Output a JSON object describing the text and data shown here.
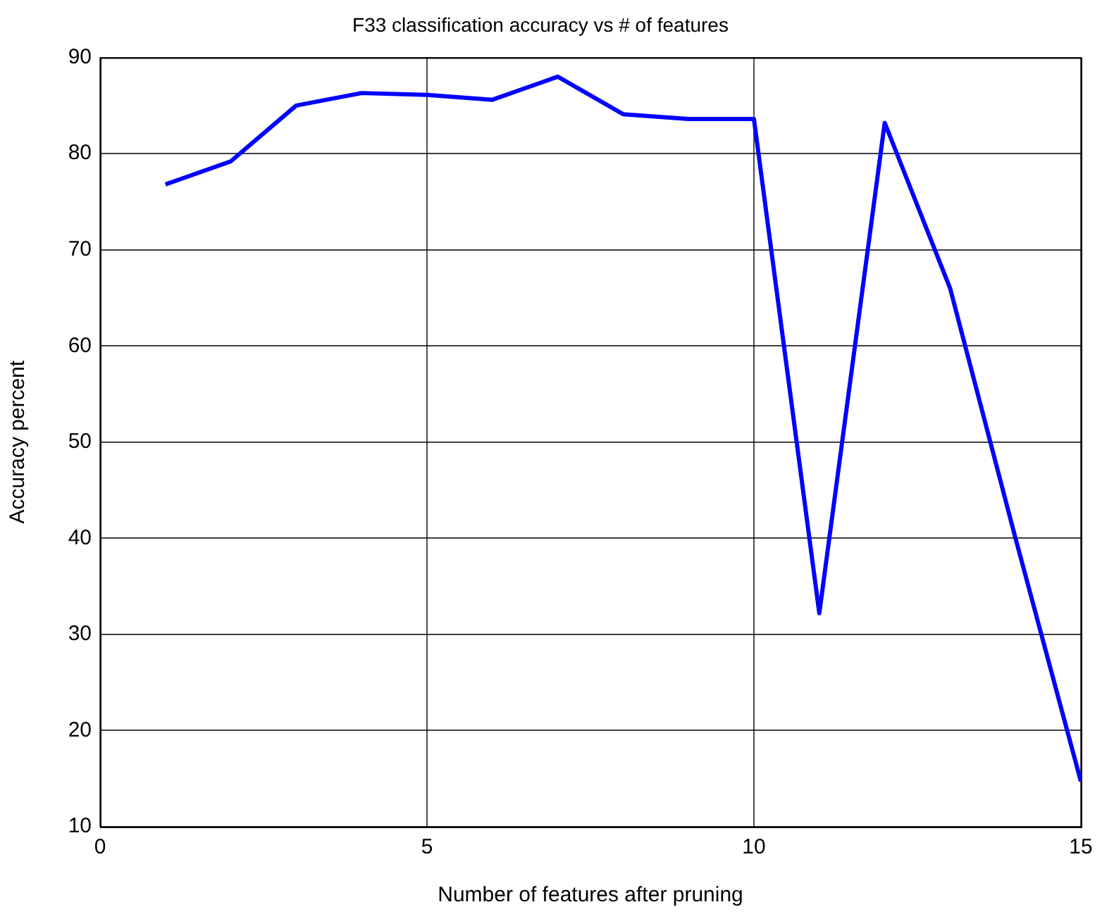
{
  "chart_data": {
    "type": "line",
    "title": "F33 classification accuracy vs # of features",
    "xlabel": "Number of features after pruning",
    "ylabel": "Accuracy percent",
    "x": [
      1,
      2,
      3,
      4,
      5,
      6,
      7,
      8,
      9,
      10,
      11,
      12,
      13,
      14,
      15
    ],
    "values": [
      76.8,
      79.2,
      85,
      86.3,
      86.1,
      85.6,
      88,
      84.1,
      83.6,
      83.6,
      32.2,
      83.2,
      66,
      40,
      14.7
    ],
    "color": "#0000ff",
    "line_style": "solid",
    "xlim": [
      0,
      15
    ],
    "xticks": [
      0,
      5,
      10,
      15
    ],
    "ylim": [
      10,
      90
    ],
    "yticks": [
      10,
      20,
      30,
      40,
      50,
      60,
      70,
      80,
      90
    ],
    "grid": true
  }
}
